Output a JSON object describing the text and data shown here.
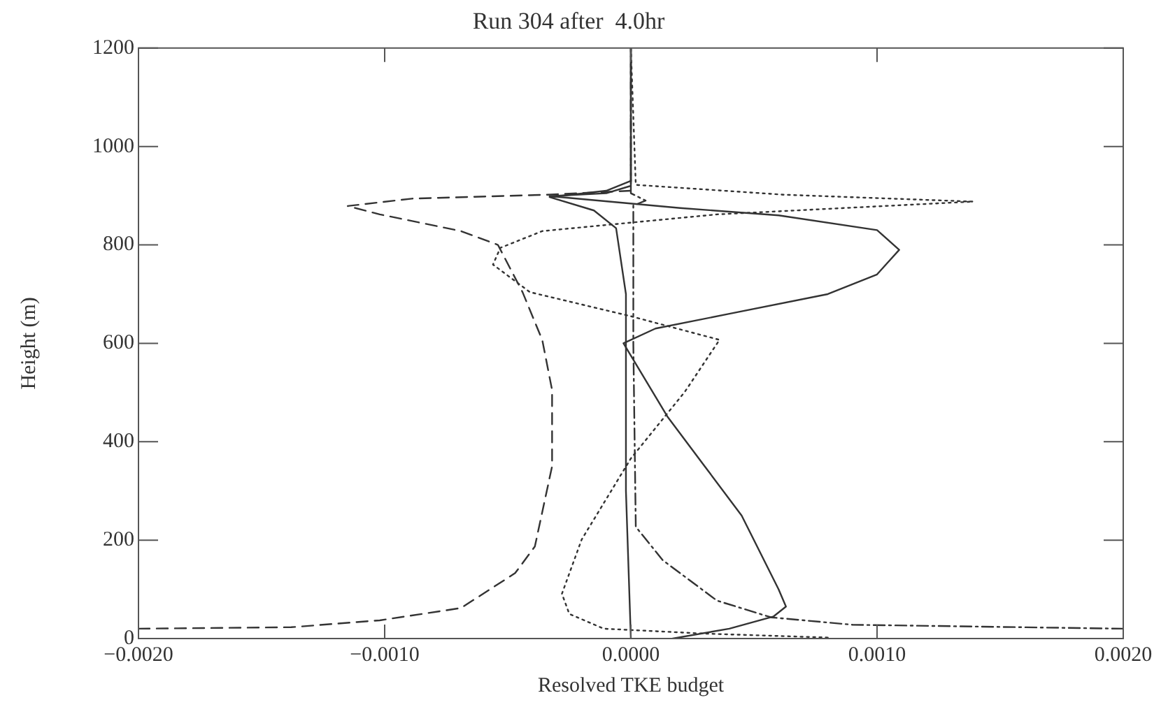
{
  "chart_data": {
    "type": "line",
    "title": "Run 304 after  4.0hr",
    "xlabel": "Resolved TKE budget",
    "ylabel": "Height (m)",
    "xlim": [
      -0.002,
      0.002
    ],
    "xticks": [
      {
        "value": -0.002,
        "label": "−0.0020"
      },
      {
        "value": -0.001,
        "label": "−0.0010"
      },
      {
        "value": 0,
        "label": "0.0000"
      },
      {
        "value": 0.001,
        "label": "0.0010"
      },
      {
        "value": 0.002,
        "label": "0.0020"
      }
    ],
    "ylim": [
      0,
      1200
    ],
    "yticks": [
      0,
      200,
      400,
      600,
      800,
      1000,
      1200
    ],
    "grid": false,
    "legend": false,
    "marker": "none",
    "series": [
      {
        "color": "#333333",
        "line_style": "solid",
        "x": [
          0.00017,
          0.0004,
          0.00058,
          0.00063,
          0.0006,
          0.00045,
          0.0003,
          0.00015,
          3e-05,
          -3e-05,
          0.0001,
          0.0004,
          0.0008,
          0.001,
          0.00109,
          0.001,
          0.0006,
          0.0002,
          -0.00033,
          -0.0001,
          0,
          0
        ],
        "values": [
          0,
          20,
          45,
          65,
          100,
          250,
          350,
          450,
          550,
          600,
          630,
          660,
          700,
          740,
          790,
          830,
          860,
          875,
          899,
          905,
          920,
          1200
        ]
      },
      {
        "color": "#333333",
        "line_style": "dashed",
        "x": [
          -0.002,
          -0.00138,
          -0.00102,
          -0.00069,
          -0.00047,
          -0.00039,
          -0.00032,
          -0.00032,
          -0.00036,
          -0.00044,
          -0.00054,
          -0.00069,
          -0.00102,
          -0.00115,
          -0.00089,
          -0.00034,
          0,
          0
        ],
        "values": [
          20,
          23,
          37,
          62,
          133,
          187,
          350,
          505,
          607,
          704,
          800,
          828,
          862,
          879,
          894,
          902,
          910,
          1200
        ]
      },
      {
        "color": "#333333",
        "line_style": "dotted",
        "x": [
          0.0008,
          0.0003,
          -0.00011,
          -0.00025,
          -0.00028,
          -0.0002,
          0,
          0.00022,
          0.00036,
          0,
          -0.00041,
          -0.00056,
          -0.00053,
          -0.00036,
          0.00035,
          0.00139,
          0.00062,
          2e-05,
          0
        ],
        "values": [
          2,
          10,
          20,
          50,
          91,
          201,
          366,
          502,
          607,
          655,
          704,
          760,
          794,
          828,
          862,
          888,
          902,
          922,
          1200
        ]
      },
      {
        "color": "#333333",
        "line_style": "dashdot",
        "x": [
          0.002,
          0.0009,
          0.00057,
          0.00035,
          0.00013,
          2e-05,
          1e-05,
          1e-05,
          6e-05,
          0,
          0
        ],
        "values": [
          20,
          28,
          43,
          77,
          159,
          227,
          600,
          880,
          890,
          905,
          1200
        ]
      },
      {
        "color": "#333333",
        "line_style": "solid",
        "x": [
          0,
          -2e-05,
          -2e-05,
          -6e-05,
          -0.00015,
          -0.00033,
          -0.0001,
          0,
          0
        ],
        "values": [
          0,
          300,
          700,
          834,
          870,
          897,
          910,
          930,
          1200
        ]
      }
    ]
  }
}
